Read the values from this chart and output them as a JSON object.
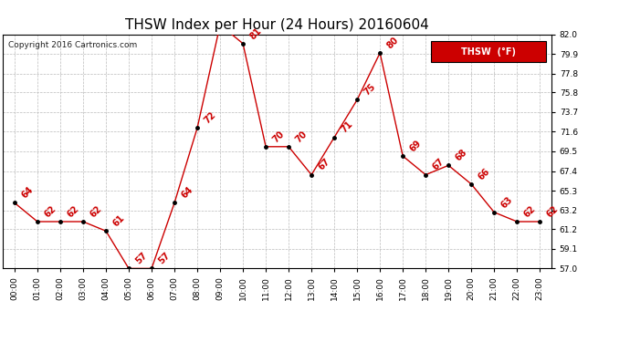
{
  "title": "THSW Index per Hour (24 Hours) 20160604",
  "copyright": "Copyright 2016 Cartronics.com",
  "legend_label": "THSW  (°F)",
  "hours": [
    0,
    1,
    2,
    3,
    4,
    5,
    6,
    7,
    8,
    9,
    10,
    11,
    12,
    13,
    14,
    15,
    16,
    17,
    18,
    19,
    20,
    21,
    22,
    23
  ],
  "values": [
    64,
    62,
    62,
    62,
    61,
    57,
    57,
    64,
    72,
    83,
    81,
    70,
    70,
    67,
    71,
    75,
    80,
    69,
    67,
    68,
    66,
    63,
    62,
    62
  ],
  "ylim_min": 57.0,
  "ylim_max": 82.0,
  "yticks": [
    57.0,
    59.1,
    61.2,
    63.2,
    65.3,
    67.4,
    69.5,
    71.6,
    73.7,
    75.8,
    77.8,
    79.9,
    82.0
  ],
  "line_color": "#cc0000",
  "marker_color": "#000000",
  "bg_color": "#ffffff",
  "grid_color": "#bbbbbb",
  "title_fontsize": 11,
  "label_fontsize": 6.5,
  "annotation_fontsize": 7,
  "copyright_fontsize": 6.5,
  "legend_bg": "#cc0000",
  "legend_text_color": "#ffffff",
  "legend_fontsize": 7
}
